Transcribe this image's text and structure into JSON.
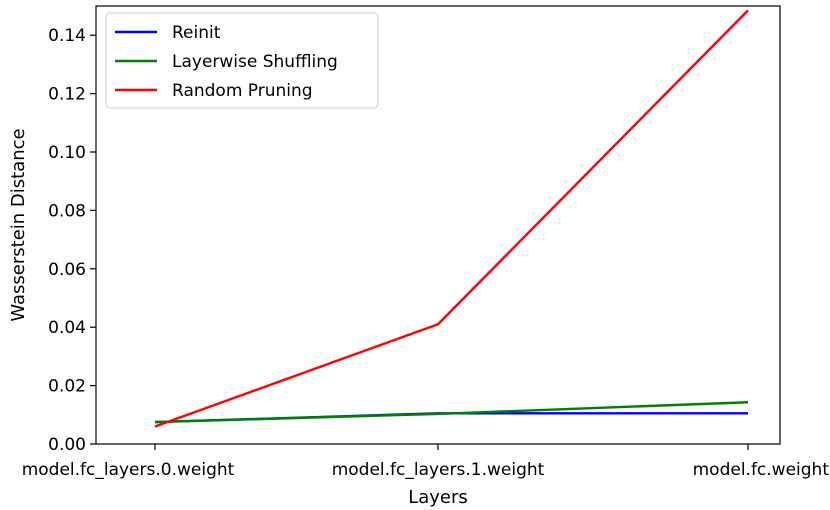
{
  "chart_data": {
    "type": "line",
    "title": "",
    "xlabel": "Layers",
    "ylabel": "Wasserstein Distance",
    "categories": [
      "model.fc_layers.0.weight",
      "model.fc_layers.1.weight",
      "model.fc.weight"
    ],
    "ylim": [
      0.0,
      0.15
    ],
    "yticks": [
      0.0,
      0.02,
      0.04,
      0.06,
      0.08,
      0.1,
      0.12,
      0.14
    ],
    "ytick_labels": [
      "0.00",
      "0.02",
      "0.04",
      "0.06",
      "0.08",
      "0.10",
      "0.12",
      "0.14"
    ],
    "grid": false,
    "legend_position": "top-left",
    "series": [
      {
        "name": "Reinit",
        "color": "#0000ff",
        "values": [
          0.0075,
          0.0105,
          0.0105
        ]
      },
      {
        "name": "Layerwise Shuffling",
        "color": "#008000",
        "values": [
          0.0075,
          0.0103,
          0.0143
        ]
      },
      {
        "name": "Random Pruning",
        "color": "#ff0000",
        "values": [
          0.006,
          0.041,
          0.1485
        ]
      }
    ]
  }
}
